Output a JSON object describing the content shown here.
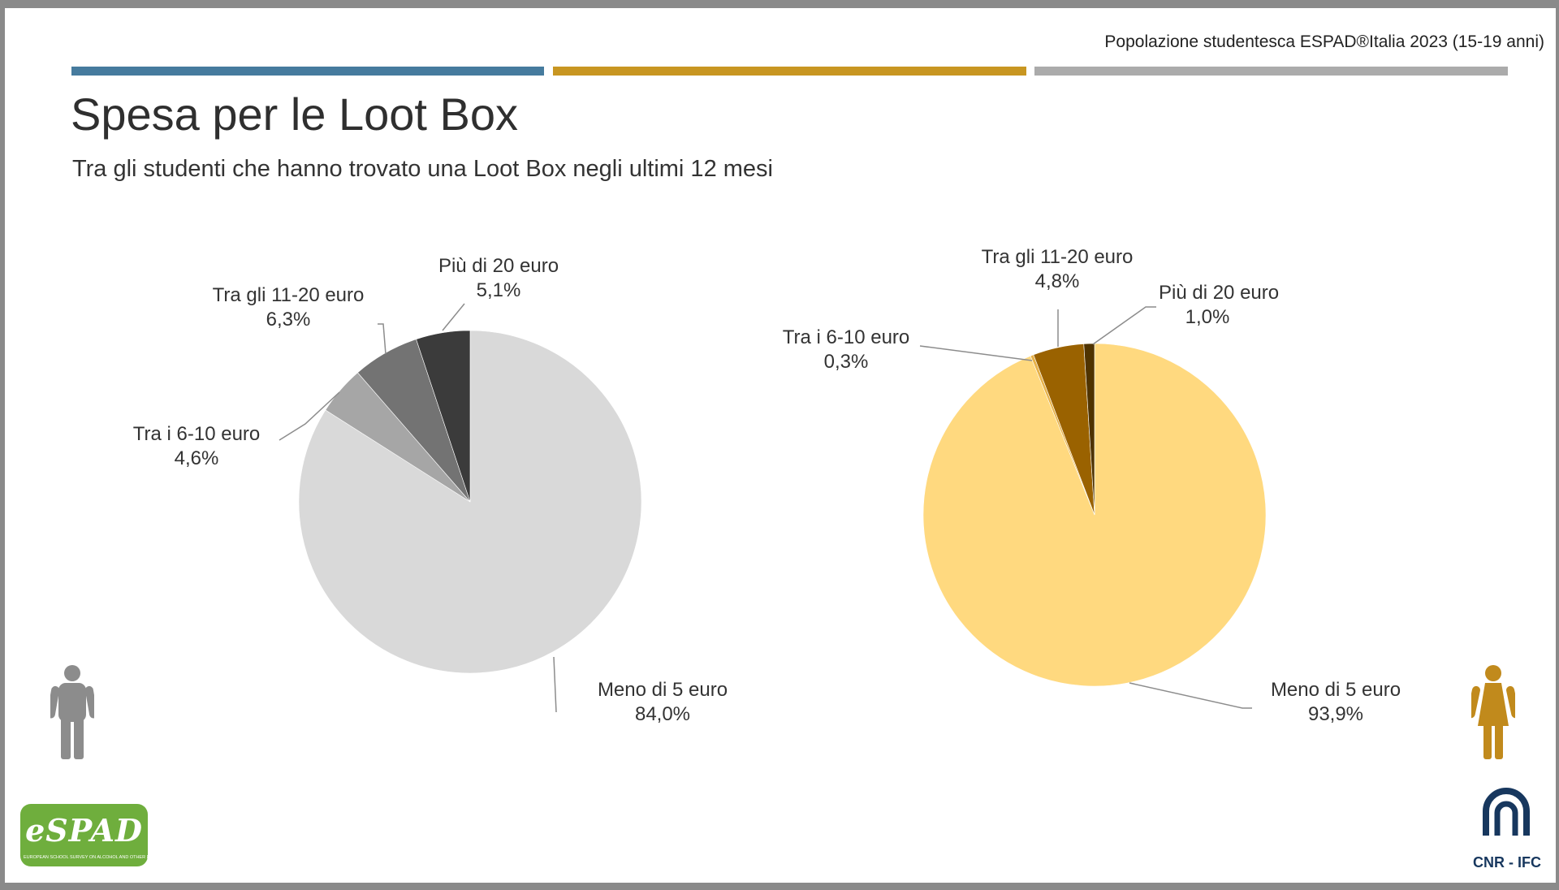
{
  "header": {
    "source_note": "Popolazione studentesca ESPAD®Italia 2023 (15-19 anni)",
    "title": "Spesa per le Loot Box",
    "subtitle": "Tra gli studenti che hanno trovato una Loot Box negli ultimi 12 mesi"
  },
  "colors": {
    "accent_blue": "#467b9e",
    "accent_gold": "#c89621",
    "accent_gray": "#ababab",
    "male_figure": "#8c8c8c",
    "female_figure": "#c18a1c",
    "espad_green": "#6fae3d",
    "cnr_blue": "#17375e"
  },
  "chart_data": [
    {
      "type": "pie",
      "categories": [
        "Meno di 5 euro",
        "Tra i 6-10 euro",
        "Tra gli 11-20 euro",
        "Più di 20 euro"
      ],
      "values": [
        84.0,
        4.6,
        6.3,
        5.1
      ],
      "value_labels": [
        "84,0%",
        "4,6%",
        "6,3%",
        "5,1%"
      ],
      "colors": [
        "#d9d9d9",
        "#a6a6a6",
        "#737373",
        "#3b3b3b"
      ],
      "group_icon": "male-icon"
    },
    {
      "type": "pie",
      "categories": [
        "Meno di 5 euro",
        "Tra i 6-10 euro",
        "Tra gli 11-20 euro",
        "Più di 20 euro"
      ],
      "values": [
        93.9,
        0.3,
        4.8,
        1.0
      ],
      "value_labels": [
        "93,9%",
        "0,3%",
        "4,8%",
        "1,0%"
      ],
      "colors": [
        "#ffd97f",
        "#e7b24a",
        "#9a6200",
        "#4f3300"
      ],
      "group_icon": "female-icon"
    }
  ],
  "logos": {
    "espad_text": "eSPAD",
    "espad_tagline": "EUROPEAN SCHOOL SURVEY ON ALCOHOL AND OTHER DRUGS",
    "cnr_text": "CNR - IFC"
  }
}
